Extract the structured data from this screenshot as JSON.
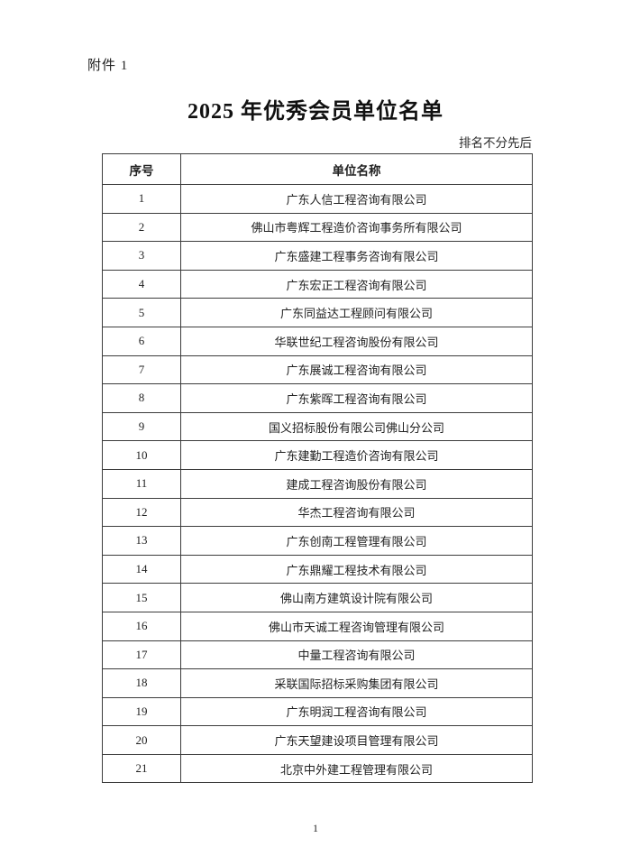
{
  "page": {
    "attachment_label": "附件 1",
    "title": "2025 年优秀会员单位名单",
    "note": "排名不分先后",
    "page_number": "1"
  },
  "table": {
    "headers": [
      "序号",
      "单位名称"
    ],
    "rows": [
      {
        "no": "1",
        "name": "广东人信工程咨询有限公司"
      },
      {
        "no": "2",
        "name": "佛山市粤辉工程造价咨询事务所有限公司"
      },
      {
        "no": "3",
        "name": "广东盛建工程事务咨询有限公司"
      },
      {
        "no": "4",
        "name": "广东宏正工程咨询有限公司"
      },
      {
        "no": "5",
        "name": "广东同益达工程顾问有限公司"
      },
      {
        "no": "6",
        "name": "华联世纪工程咨询股份有限公司"
      },
      {
        "no": "7",
        "name": "广东展诚工程咨询有限公司"
      },
      {
        "no": "8",
        "name": "广东紫晖工程咨询有限公司"
      },
      {
        "no": "9",
        "name": "国义招标股份有限公司佛山分公司"
      },
      {
        "no": "10",
        "name": "广东建勤工程造价咨询有限公司"
      },
      {
        "no": "11",
        "name": "建成工程咨询股份有限公司"
      },
      {
        "no": "12",
        "name": "华杰工程咨询有限公司"
      },
      {
        "no": "13",
        "name": "广东创南工程管理有限公司"
      },
      {
        "no": "14",
        "name": "广东鼎耀工程技术有限公司"
      },
      {
        "no": "15",
        "name": "佛山南方建筑设计院有限公司"
      },
      {
        "no": "16",
        "name": "佛山市天诚工程咨询管理有限公司"
      },
      {
        "no": "17",
        "name": "中量工程咨询有限公司"
      },
      {
        "no": "18",
        "name": "采联国际招标采购集团有限公司"
      },
      {
        "no": "19",
        "name": "广东明润工程咨询有限公司"
      },
      {
        "no": "20",
        "name": "广东天望建设项目管理有限公司"
      },
      {
        "no": "21",
        "name": "北京中外建工程管理有限公司"
      }
    ]
  }
}
